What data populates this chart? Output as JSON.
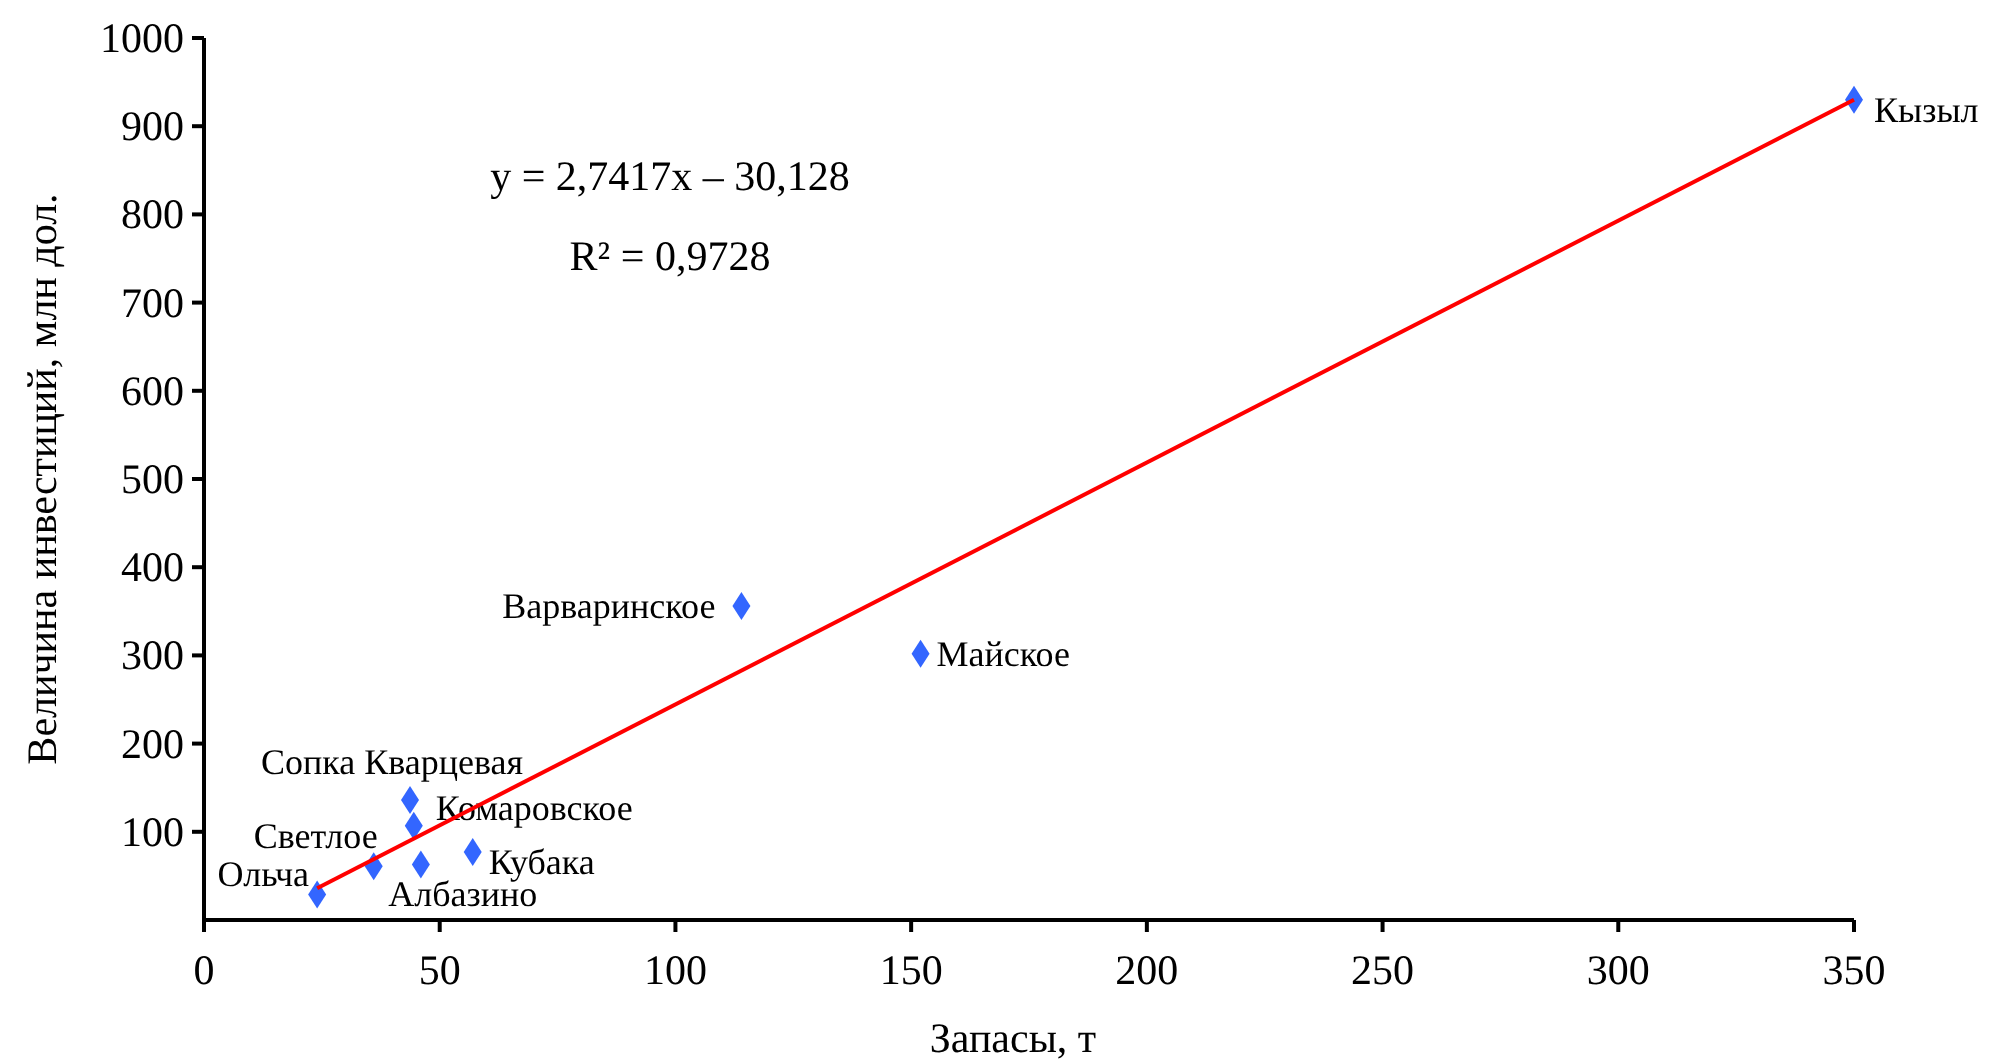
{
  "chart_data": {
    "type": "scatter",
    "xlabel": "Запасы, т",
    "ylabel": "Величина инвестиций, млн дол.",
    "xlim": [
      0,
      350
    ],
    "xticks": [
      0,
      50,
      100,
      150,
      200,
      250,
      300,
      350
    ],
    "ylim": [
      0,
      1000
    ],
    "yticks": [
      100,
      200,
      300,
      400,
      500,
      600,
      700,
      800,
      900,
      1000
    ],
    "grid": false,
    "marker": "diamond",
    "series": [
      {
        "color": "#3366ff",
        "x": [
          24,
          36,
          43.7,
          44.5,
          46,
          57,
          114,
          152,
          350
        ],
        "values": [
          29,
          61,
          136,
          107,
          63,
          77,
          356,
          302,
          930
        ],
        "value_labels": [
          "Ольча",
          "Светлое",
          "Сопка Кварцевая",
          "Комаровское",
          "Албазино",
          "Кубака",
          "Варваринское",
          "Майское",
          "Кызыл"
        ]
      },
      {
        "type": "line",
        "color": "#ff0000",
        "line_style": "solid",
        "marker": "none",
        "x": [
          24,
          350
        ],
        "values": [
          36,
          930
        ]
      }
    ],
    "annotations": [
      "y = 2,7417x – 30,128",
      "R² = 0,9728"
    ]
  }
}
